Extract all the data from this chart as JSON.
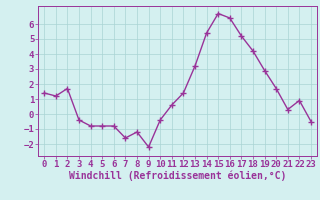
{
  "x": [
    0,
    1,
    2,
    3,
    4,
    5,
    6,
    7,
    8,
    9,
    10,
    11,
    12,
    13,
    14,
    15,
    16,
    17,
    18,
    19,
    20,
    21,
    22,
    23
  ],
  "y": [
    1.4,
    1.2,
    1.7,
    -0.4,
    -0.8,
    -0.8,
    -0.8,
    -1.6,
    -1.2,
    -2.2,
    -0.4,
    0.6,
    1.4,
    3.2,
    5.4,
    6.7,
    6.4,
    5.2,
    4.2,
    2.9,
    1.7,
    0.3,
    0.9,
    -0.5
  ],
  "line_color": "#993399",
  "marker": "+",
  "markersize": 4,
  "linewidth": 1.0,
  "bg_color": "#d4f0f0",
  "grid_color": "#aad4d4",
  "xlabel": "Windchill (Refroidissement éolien,°C)",
  "xlim": [
    -0.5,
    23.5
  ],
  "ylim": [
    -2.8,
    7.2
  ],
  "yticks": [
    -2,
    -1,
    0,
    1,
    2,
    3,
    4,
    5,
    6
  ],
  "xticks": [
    0,
    1,
    2,
    3,
    4,
    5,
    6,
    7,
    8,
    9,
    10,
    11,
    12,
    13,
    14,
    15,
    16,
    17,
    18,
    19,
    20,
    21,
    22,
    23
  ],
  "axis_color": "#993399",
  "tick_color": "#993399",
  "xlabel_color": "#993399",
  "tick_fontsize": 6.5,
  "xlabel_fontsize": 7.0
}
